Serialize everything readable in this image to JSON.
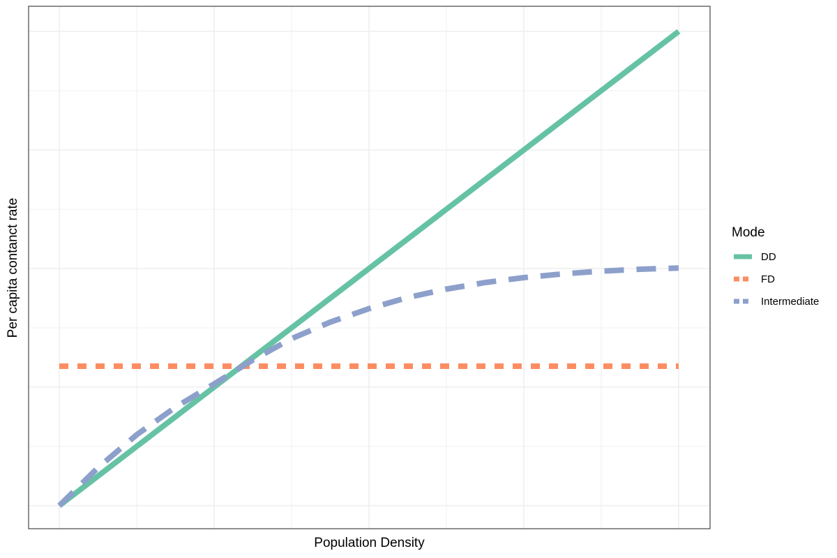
{
  "chart_data": {
    "type": "line",
    "title": "",
    "xlabel": "Population Density",
    "ylabel": "Per capita contanct rate",
    "x_tick_labels_shown": false,
    "y_tick_labels_shown": false,
    "grid": true,
    "xlim": [
      0,
      1
    ],
    "ylim": [
      0,
      1
    ],
    "legend": {
      "title": "Mode",
      "placement": "right",
      "entries": [
        {
          "label": "DD",
          "color": "#66C2A5",
          "style": "solid"
        },
        {
          "label": "FD",
          "color": "#FC8D62",
          "style": "dashed"
        },
        {
          "label": "Intermediate",
          "color": "#8DA0CB",
          "style": "dashed"
        }
      ]
    },
    "series": [
      {
        "name": "DD",
        "color": "#66C2A5",
        "style": "solid",
        "x": [
          0,
          0.125,
          0.25,
          0.375,
          0.5,
          0.625,
          0.75,
          0.875,
          1
        ],
        "y": [
          0,
          0.125,
          0.25,
          0.375,
          0.5,
          0.625,
          0.75,
          0.875,
          1
        ]
      },
      {
        "name": "FD",
        "color": "#FC8D62",
        "style": "dashed",
        "x": [
          0,
          1
        ],
        "y": [
          0.2941,
          0.2941
        ]
      },
      {
        "name": "Intermediate",
        "color": "#8DA0CB",
        "style": "dashed",
        "x": [
          0,
          0.0625,
          0.125,
          0.1875,
          0.25,
          0.3125,
          0.375,
          0.4375,
          0.5,
          0.5625,
          0.625,
          0.6875,
          0.75,
          0.8125,
          0.875,
          0.9375,
          1
        ],
        "y": [
          0,
          0.0801,
          0.1496,
          0.2075,
          0.2568,
          0.3072,
          0.3522,
          0.3871,
          0.4155,
          0.4389,
          0.4566,
          0.4705,
          0.4809,
          0.4887,
          0.4945,
          0.4985,
          0.501
        ]
      }
    ]
  }
}
